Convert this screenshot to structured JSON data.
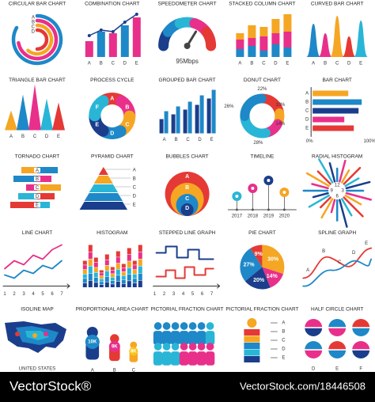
{
  "icons": [
    {
      "title": "CIRCULAR BAR CHART",
      "labels": [
        "A",
        "B",
        "C",
        "D"
      ]
    },
    {
      "title": "COMBINATION CHART",
      "labels": [
        "A",
        "B",
        "C",
        "D",
        "E"
      ]
    },
    {
      "title": "SPEEDOMETER CHART",
      "labels": [
        "95Mbps"
      ]
    },
    {
      "title": "STACKED COLUMN CHART",
      "labels": [
        "A",
        "B",
        "C",
        "D",
        "E"
      ]
    },
    {
      "title": "CURVED BAR CHART",
      "labels": [
        "A",
        "B",
        "C",
        "D",
        "E"
      ]
    },
    {
      "title": "TRIANGLE BAR CHART",
      "labels": [
        "A",
        "B",
        "C",
        "D",
        "E"
      ]
    },
    {
      "title": "PROCESS CYCLE",
      "labels": [
        "A",
        "B",
        "C",
        "D",
        "E",
        "F"
      ]
    },
    {
      "title": "GROUPED BAR CHART",
      "labels": [
        "A",
        "B",
        "C",
        "D",
        "E"
      ]
    },
    {
      "title": "DONUT CHART",
      "labels": [
        "22%",
        "10%",
        "14%",
        "28%",
        "26%"
      ]
    },
    {
      "title": "BAR CHART",
      "labels": [
        "A",
        "B",
        "C",
        "D",
        "E",
        "0%",
        "100%"
      ]
    },
    {
      "title": "TORNADO CHART",
      "labels": [
        "A",
        "B",
        "C",
        "D",
        "E"
      ]
    },
    {
      "title": "PYRAMID CHART",
      "labels": [
        "A",
        "B",
        "C",
        "D",
        "E"
      ]
    },
    {
      "title": "BUBBLES CHART",
      "labels": [
        "A",
        "B",
        "C",
        "D"
      ]
    },
    {
      "title": "TIMELINE",
      "labels": [
        "2017",
        "2018",
        "2019",
        "2020"
      ]
    },
    {
      "title": "RADIAL HISTOGRAM",
      "labels": [
        "12",
        "3",
        "6",
        "9"
      ]
    },
    {
      "title": "LINE CHART",
      "labels": [
        "1",
        "2",
        "3",
        "4",
        "5",
        "6",
        "7"
      ]
    },
    {
      "title": "HISTOGRAM",
      "labels": []
    },
    {
      "title": "STEPPED LINE GRAPH",
      "labels": [
        "1",
        "2",
        "3",
        "4",
        "5",
        "6",
        "7"
      ]
    },
    {
      "title": "PIE CHART",
      "labels": [
        "9%",
        "30%",
        "27%",
        "14%",
        "20%"
      ]
    },
    {
      "title": "SPLINE GRAPH",
      "labels": [
        "A",
        "B",
        "C",
        "D",
        "E"
      ]
    },
    {
      "title": "ISOLINE MAP",
      "labels": [
        "UNITED STATES"
      ]
    },
    {
      "title": "PROPORTIONAL AREA CHART",
      "labels": [
        "10K",
        "9K",
        "8K",
        "A",
        "B",
        "C"
      ]
    },
    {
      "title": "PICTORIAL FRACTION CHART",
      "labels": []
    },
    {
      "title": "PICTORIAL FRACTION CHART",
      "labels": [
        "A",
        "B",
        "C",
        "D",
        "E"
      ]
    },
    {
      "title": "HALF CIRCLE CHART",
      "labels": [
        "D",
        "E",
        "F"
      ]
    }
  ],
  "footer": {
    "brand": "VectorStock®",
    "url": "VectorStock.com/18446508"
  }
}
